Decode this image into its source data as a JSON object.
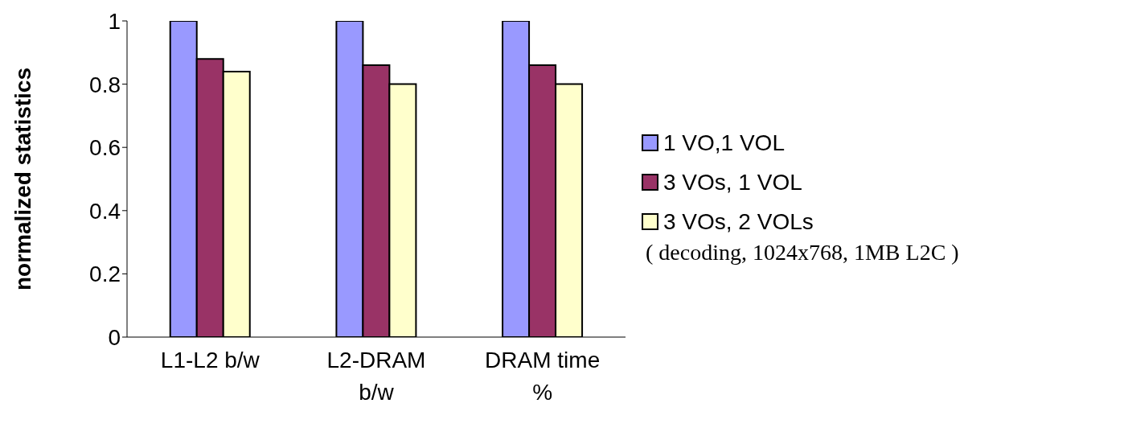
{
  "chart_data": {
    "type": "bar",
    "ylabel": "normalized statistics",
    "categories": [
      "L1-L2 b/w",
      "L2-DRAM b/w",
      "DRAM time %"
    ],
    "series": [
      {
        "name": "1 VO,1 VOL",
        "color": "#9999ff",
        "values": [
          1,
          1,
          1
        ]
      },
      {
        "name": "3 VOs, 1 VOL",
        "color": "#993366",
        "values": [
          0.88,
          0.86,
          0.86
        ]
      },
      {
        "name": "3 VOs, 2 VOLs",
        "color": "#ffffcc",
        "values": [
          0.84,
          0.8,
          0.8
        ]
      }
    ],
    "ylim": [
      0,
      1
    ],
    "yticks": [
      0,
      0.2,
      0.4,
      0.6,
      0.8,
      1
    ],
    "grid": false,
    "legend": "right",
    "annotations": [
      "( decoding, 1024x768, 1MB L2C )"
    ]
  }
}
